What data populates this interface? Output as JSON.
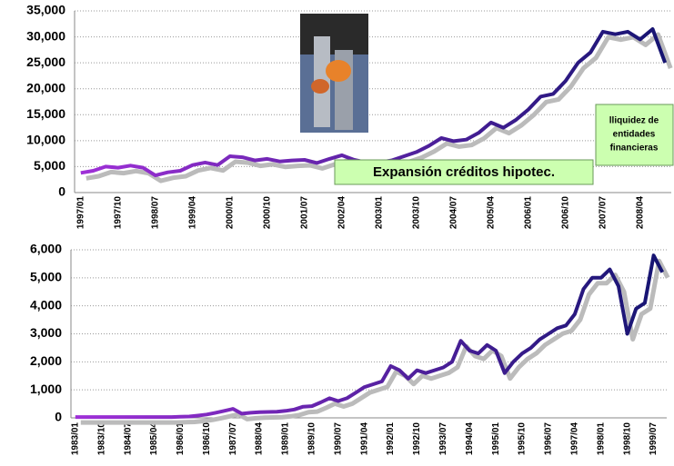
{
  "chart_data": [
    {
      "type": "line",
      "categories": [
        "1997/01",
        null,
        null,
        "1997/10",
        null,
        null,
        "1998/07",
        null,
        null,
        "1999/04",
        null,
        null,
        "2000/01",
        null,
        null,
        "2000/10",
        null,
        null,
        "2001/07",
        null,
        null,
        "2002/04",
        null,
        null,
        "2003/01",
        null,
        null,
        "2003/10",
        null,
        null,
        "2004/07",
        null,
        null,
        "2005/04",
        null,
        null,
        "2006/01",
        null,
        null,
        "2006/10",
        null,
        null,
        "2007/07",
        null,
        null,
        "2008/04",
        null,
        null
      ],
      "values": [
        3800,
        4200,
        5000,
        4800,
        5200,
        4800,
        3300,
        3900,
        4200,
        5300,
        5800,
        5300,
        7000,
        6800,
        6200,
        6500,
        6000,
        6200,
        6300,
        5700,
        6500,
        7200,
        6300,
        5800,
        5800,
        6200,
        7000,
        7800,
        9000,
        10500,
        9900,
        10200,
        11500,
        13500,
        12500,
        14000,
        16000,
        18500,
        19000,
        21500,
        25000,
        27000,
        31000,
        30500,
        31000,
        29500,
        31500,
        25000
      ],
      "color": [
        "#a030d8",
        "#141470"
      ],
      "ylim": [
        0,
        35000
      ],
      "yticks": [
        0,
        {
          "value": 5000,
          "label": "5,000"
        },
        {
          "value": 10000,
          "label": "10,000"
        },
        {
          "value": 15000,
          "label": "15,000"
        },
        {
          "value": 20000,
          "label": "20,000"
        },
        {
          "value": 25000,
          "label": "25,000"
        },
        {
          "value": 30000,
          "label": "30,000"
        },
        {
          "value": 35000,
          "label": "35,000"
        }
      ],
      "grid": true,
      "annotations": [
        [
          "Expansión créditos hipotec."
        ],
        [
          "lliquidez de",
          "entidades",
          "financieras"
        ]
      ]
    },
    {
      "type": "line",
      "categories": [
        "1983/01",
        null,
        null,
        "1983/10",
        null,
        null,
        "1984/07",
        null,
        null,
        "1985/04",
        null,
        null,
        "1986/01",
        null,
        null,
        "1986/10",
        null,
        null,
        "1987/07",
        null,
        null,
        "1988/04",
        null,
        null,
        "1989/01",
        null,
        null,
        "1989/10",
        null,
        null,
        "1990/07",
        null,
        null,
        "1991/04",
        null,
        null,
        "1992/01",
        null,
        null,
        "1992/10",
        null,
        null,
        "1993/07",
        null,
        null,
        "1994/04",
        null,
        null,
        "1995/01",
        null,
        null,
        "1995/10",
        null,
        null,
        "1996/07",
        null,
        null,
        "1997/04",
        null,
        null,
        "1998/01",
        null,
        null,
        "1998/10",
        null,
        null,
        "1999/07",
        null
      ],
      "values": [
        30,
        30,
        30,
        30,
        30,
        30,
        30,
        30,
        30,
        30,
        30,
        30,
        40,
        50,
        80,
        120,
        180,
        250,
        320,
        150,
        180,
        200,
        210,
        220,
        250,
        300,
        400,
        420,
        550,
        700,
        600,
        700,
        900,
        1100,
        1200,
        1300,
        1850,
        1700,
        1400,
        1700,
        1600,
        1700,
        1800,
        2000,
        2750,
        2400,
        2300,
        2600,
        2400,
        1600,
        2000,
        2300,
        2500,
        2800,
        3000,
        3200,
        3300,
        3700,
        4600,
        5000,
        5000,
        5300,
        4700,
        3000,
        3900,
        4100,
        5800,
        5200
      ],
      "color": [
        "#a030d8",
        "#141470"
      ],
      "ylim": [
        0,
        6000
      ],
      "yticks": [
        0,
        {
          "value": 1000,
          "label": "1,000"
        },
        {
          "value": 2000,
          "label": "2,000"
        },
        {
          "value": 3000,
          "label": "3,000"
        },
        {
          "value": 4000,
          "label": "4,000"
        },
        {
          "value": 5000,
          "label": "5,000"
        },
        {
          "value": 6000,
          "label": "6,000"
        }
      ],
      "grid": true
    }
  ]
}
